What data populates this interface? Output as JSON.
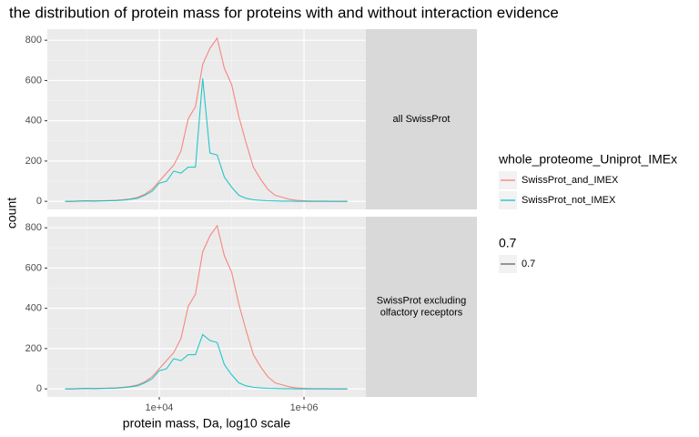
{
  "chart_data": {
    "type": "line",
    "title": "the distribution of protein mass for proteins with and without interaction evidence",
    "xlabel": "protein mass, Da, log10 scale",
    "ylabel": "count",
    "log_x": true,
    "grid": true,
    "xlim": [
      284,
      7160000
    ],
    "xticks": [
      {
        "value": 10000,
        "label": "1e+04"
      },
      {
        "value": 1000000,
        "label": "1e+06"
      }
    ],
    "x_minor_grid": [
      1000,
      100000
    ],
    "ylim": [
      -40,
      855
    ],
    "yticks": [
      0,
      200,
      400,
      600,
      800
    ],
    "y_minor_grid": [
      100,
      300,
      500,
      700
    ],
    "legend_title": "whole_proteome_Uniprot_IMEx",
    "legend_position": "right",
    "series": [
      {
        "name": "SwissProt_and_IMEX",
        "color": "#F8766D"
      },
      {
        "name": "SwissProt_not_IMEX",
        "color": "#00BFC4"
      }
    ],
    "size_legend": {
      "title": "0.7",
      "labels": [
        "0.7"
      ],
      "color": "#555555"
    },
    "x": [
      501,
      631,
      794,
      1000,
      1259,
      1585,
      1995,
      2512,
      3162,
      3981,
      5012,
      6310,
      7943,
      10000,
      12589,
      15849,
      19953,
      25119,
      31623,
      39811,
      50119,
      63096,
      79433,
      100000,
      125893,
      158489,
      199526,
      251189,
      316228,
      398107,
      501187,
      630957,
      794328,
      1000000,
      1258925,
      1584893,
      1995262,
      2511886,
      3162278,
      3981072
    ],
    "facets": [
      {
        "label": "all SwissProt",
        "values": [
          [
            0,
            0,
            2,
            3,
            2,
            3,
            4,
            5,
            8,
            12,
            20,
            35,
            60,
            100,
            140,
            180,
            250,
            410,
            470,
            680,
            760,
            810,
            660,
            580,
            420,
            290,
            170,
            110,
            60,
            30,
            20,
            10,
            5,
            3,
            1,
            1,
            1,
            0,
            0,
            0
          ],
          [
            0,
            0,
            1,
            2,
            1,
            2,
            3,
            4,
            6,
            10,
            15,
            30,
            50,
            90,
            100,
            150,
            140,
            170,
            170,
            610,
            240,
            230,
            120,
            70,
            30,
            15,
            8,
            5,
            3,
            2,
            1,
            1,
            0,
            0,
            0,
            0,
            0,
            0,
            0,
            0
          ]
        ]
      },
      {
        "label": "SwissProt excluding\nolfactory receptors",
        "values": [
          [
            0,
            0,
            2,
            3,
            2,
            3,
            4,
            5,
            8,
            12,
            20,
            35,
            60,
            100,
            140,
            180,
            250,
            410,
            470,
            680,
            760,
            810,
            660,
            580,
            420,
            290,
            170,
            110,
            60,
            30,
            20,
            10,
            5,
            3,
            1,
            1,
            1,
            0,
            0,
            0
          ],
          [
            0,
            0,
            1,
            2,
            1,
            2,
            3,
            4,
            6,
            10,
            15,
            30,
            50,
            90,
            100,
            150,
            140,
            170,
            170,
            270,
            240,
            230,
            120,
            70,
            30,
            15,
            8,
            5,
            3,
            2,
            1,
            1,
            0,
            0,
            0,
            0,
            0,
            0,
            0,
            0
          ]
        ]
      }
    ]
  }
}
